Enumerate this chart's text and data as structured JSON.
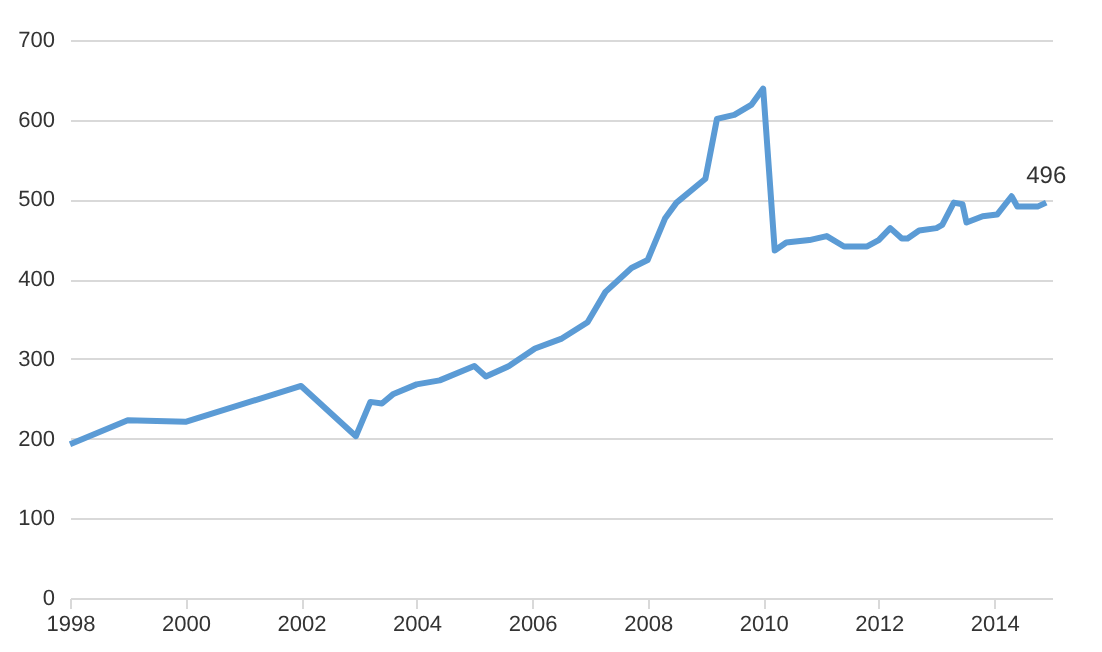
{
  "chart_data": {
    "type": "line",
    "x": [
      1998,
      1999,
      2000,
      2002,
      2002.95,
      2003.2,
      2003.4,
      2003.6,
      2004,
      2004.4,
      2005,
      2005.2,
      2005.6,
      2006.05,
      2006.5,
      2006.96,
      2007.27,
      2007.72,
      2008,
      2008.3,
      2008.5,
      2009,
      2009.2,
      2009.5,
      2009.8,
      2010,
      2010.2,
      2010.4,
      2010.8,
      2011.1,
      2011.4,
      2011.8,
      2012,
      2012.2,
      2012.4,
      2012.5,
      2012.7,
      2013,
      2013.1,
      2013.3,
      2013.45,
      2013.52,
      2013.8,
      2014.05,
      2014.3,
      2014.4,
      2014.75,
      2014.9
    ],
    "series": [
      {
        "color": "#5b9bd5",
        "values": [
          193,
          223,
          221,
          266,
          203,
          246,
          244,
          256,
          268,
          273,
          291,
          278,
          291,
          313,
          325,
          346,
          384,
          414,
          424,
          476,
          496,
          526,
          601,
          606,
          619,
          639,
          436,
          446,
          449,
          454,
          441,
          441,
          449,
          464,
          451,
          451,
          461,
          464,
          468,
          496,
          494,
          471,
          479,
          481,
          504,
          491,
          491,
          496
        ]
      }
    ],
    "xlim": [
      1998,
      2015
    ],
    "xticks": [
      1998,
      2000,
      2002,
      2004,
      2006,
      2008,
      2010,
      2012,
      2014
    ],
    "ylim": [
      0,
      700
    ],
    "yticks": [
      0,
      100,
      200,
      300,
      400,
      500,
      600,
      700
    ],
    "grid": "y",
    "marker": "none",
    "line_style": "solid",
    "annotations": [
      {
        "text": "496",
        "x": 2014.9,
        "y": 496
      }
    ]
  }
}
